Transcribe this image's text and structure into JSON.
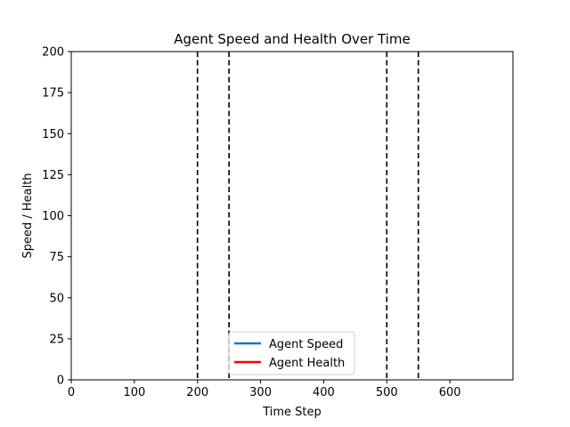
{
  "chart_data": {
    "type": "line",
    "title": "Agent Speed and Health Over Time",
    "xlabel": "Time Step",
    "ylabel": "Speed / Health",
    "xlim": [
      0,
      700
    ],
    "ylim": [
      0,
      200
    ],
    "x_ticks": [
      0,
      100,
      200,
      300,
      400,
      500,
      600
    ],
    "y_ticks": [
      0,
      25,
      50,
      75,
      100,
      125,
      150,
      175,
      200
    ],
    "grid": false,
    "legend_position": "lower-center",
    "series": [
      {
        "name": "Agent Speed",
        "color": "#1f77b4",
        "x": [],
        "values": []
      },
      {
        "name": "Agent Health",
        "color": "#ff0000",
        "x": [],
        "values": []
      }
    ],
    "vertical_lines": [
      {
        "x": 200,
        "style": "dashed",
        "color": "#000000"
      },
      {
        "x": 250,
        "style": "dashed",
        "color": "#000000"
      },
      {
        "x": 500,
        "style": "dashed",
        "color": "#000000"
      },
      {
        "x": 550,
        "style": "dashed",
        "color": "#000000"
      }
    ]
  }
}
